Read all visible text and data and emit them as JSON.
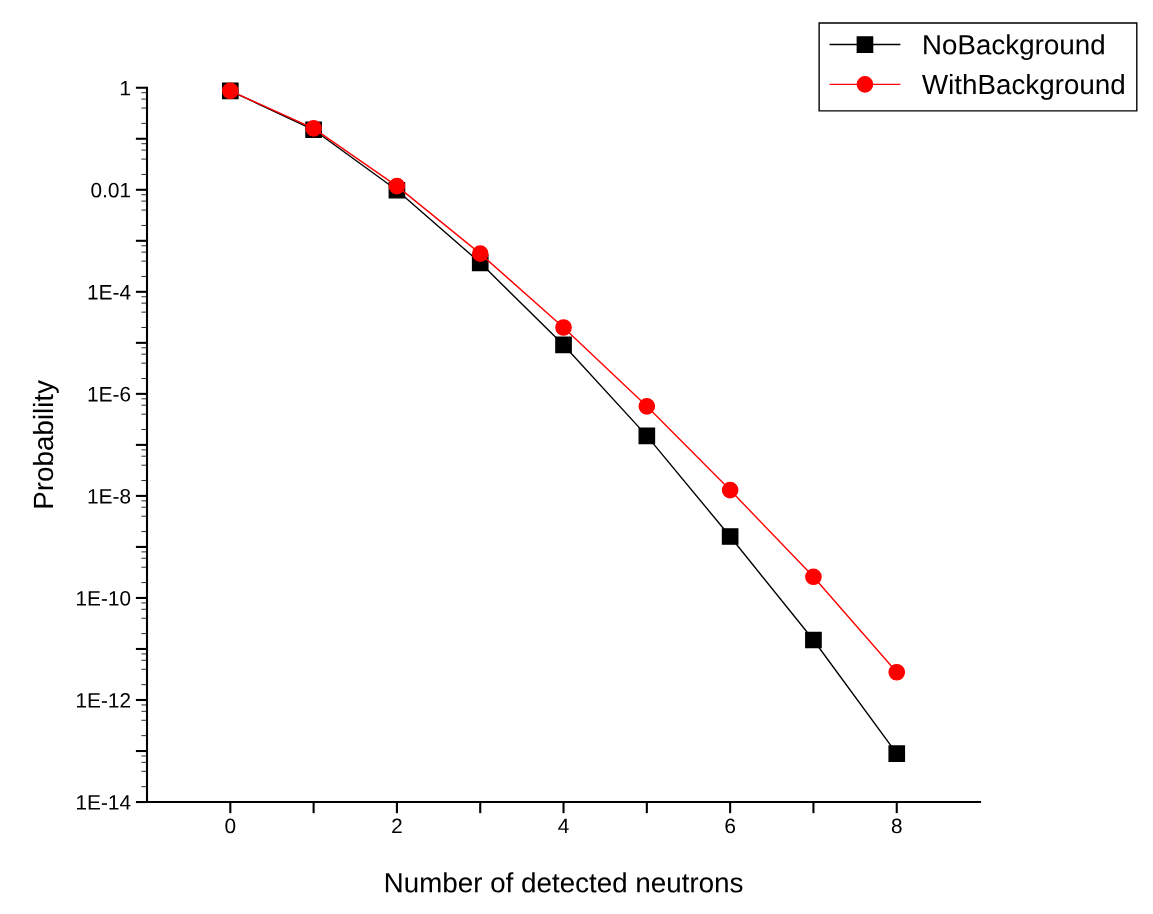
{
  "chart_data": {
    "type": "line",
    "xlabel": "Number of detected neutrons",
    "ylabel": "Probability",
    "x": [
      0,
      1,
      2,
      3,
      4,
      5,
      6,
      7,
      8
    ],
    "series": [
      {
        "name": "NoBackground",
        "color": "#000000",
        "marker": "square",
        "values": [
          0.87,
          0.15,
          0.0098,
          0.00037,
          9.1e-06,
          1.5e-07,
          1.6e-09,
          1.5e-11,
          8.9e-14
        ]
      },
      {
        "name": "WithBackground",
        "color": "#ff0000",
        "marker": "circle",
        "values": [
          0.87,
          0.16,
          0.0118,
          0.00056,
          2e-05,
          5.7e-07,
          1.3e-08,
          2.6e-10,
          3.5e-12
        ]
      }
    ],
    "log": "y",
    "xlim": [
      -1,
      9
    ],
    "ylim": [
      1e-14,
      1
    ],
    "xticks": [
      0,
      {
        "value": 1,
        "label": null
      },
      2,
      {
        "value": 3,
        "label": null
      },
      4,
      {
        "value": 5,
        "label": null
      },
      6,
      {
        "value": 7,
        "label": null
      },
      8
    ],
    "yticks": [
      {
        "value": 1e-14,
        "label": "1E-14"
      },
      {
        "value": 1e-13,
        "label": null
      },
      {
        "value": 1e-12,
        "label": "1E-12"
      },
      {
        "value": 1e-11,
        "label": null
      },
      {
        "value": 1e-10,
        "label": "1E-10"
      },
      {
        "value": 1e-09,
        "label": null
      },
      {
        "value": 1e-08,
        "label": "1E-8"
      },
      {
        "value": 1e-07,
        "label": null
      },
      {
        "value": 1e-06,
        "label": "1E-6"
      },
      {
        "value": 1e-05,
        "label": null
      },
      {
        "value": 0.0001,
        "label": "1E-4"
      },
      {
        "value": 0.001,
        "label": null
      },
      {
        "value": 0.01,
        "label": "0.01"
      },
      {
        "value": 0.1,
        "label": null
      },
      {
        "value": 1,
        "label": "1"
      }
    ],
    "grid": false,
    "legend": "top right",
    "line_style": "solid"
  }
}
